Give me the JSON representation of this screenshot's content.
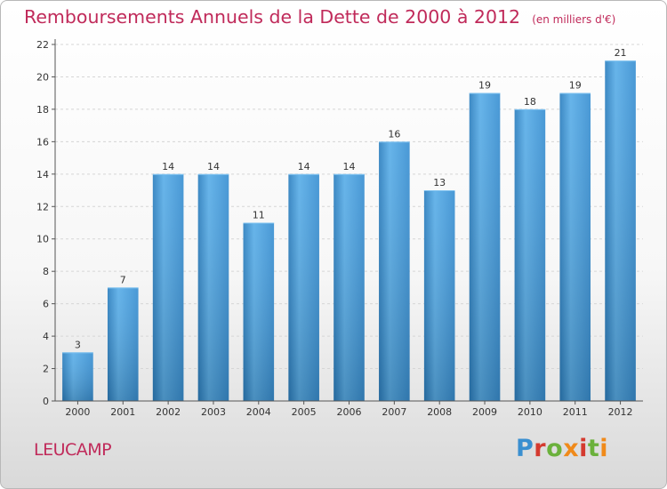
{
  "chart_data": {
    "type": "bar",
    "title": "Remboursements Annuels de la Dette de 2000 à 2012",
    "subtitle": "(en milliers d'€)",
    "categories": [
      "2000",
      "2001",
      "2002",
      "2003",
      "2004",
      "2005",
      "2006",
      "2007",
      "2008",
      "2009",
      "2010",
      "2011",
      "2012"
    ],
    "values": [
      3,
      7,
      14,
      14,
      11,
      14,
      14,
      16,
      13,
      19,
      18,
      19,
      21
    ],
    "ylim": [
      0,
      22
    ],
    "yticks": [
      0,
      2,
      4,
      6,
      8,
      10,
      12,
      14,
      16,
      18,
      20,
      22
    ],
    "xlabel": "",
    "ylabel": "",
    "grid": true,
    "bar_color": "#3a8fd0"
  },
  "footer": {
    "commune": "LEUCAMP",
    "brand": "Proxiti",
    "brand_letters": [
      "P",
      "r",
      "o",
      "x",
      "i",
      "t",
      "i"
    ]
  },
  "colors": {
    "accent": "#c02a5a"
  }
}
